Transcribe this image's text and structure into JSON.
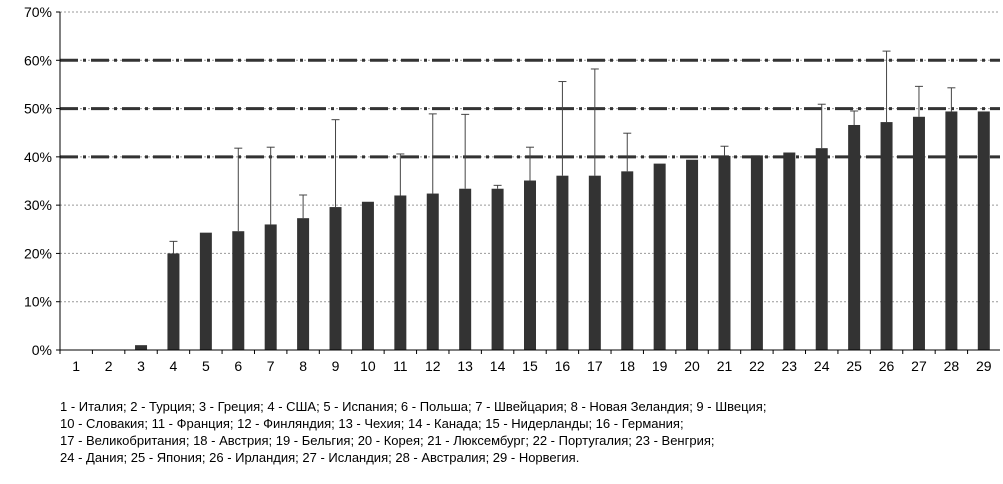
{
  "chart_data": {
    "type": "bar",
    "categories": [
      "1",
      "2",
      "3",
      "4",
      "5",
      "6",
      "7",
      "8",
      "9",
      "10",
      "11",
      "12",
      "13",
      "14",
      "15",
      "16",
      "17",
      "18",
      "19",
      "20",
      "21",
      "22",
      "23",
      "24",
      "25",
      "26",
      "27",
      "28",
      "29"
    ],
    "values": [
      0,
      0,
      1,
      20,
      24.3,
      24.6,
      26,
      27.3,
      29.6,
      30.7,
      32,
      32.4,
      33.4,
      33.4,
      35.1,
      36.1,
      36.1,
      37,
      38.6,
      39.4,
      40.2,
      40.3,
      40.9,
      41.8,
      46.6,
      47.2,
      48.3,
      49.4,
      49.4
    ],
    "error_upper": [
      0,
      0,
      0,
      22.5,
      0,
      41.8,
      42,
      32.1,
      47.7,
      0,
      40.6,
      48.9,
      48.8,
      34.1,
      42,
      55.6,
      58.2,
      44.9,
      0,
      0,
      42.2,
      0,
      0,
      50.9,
      49.5,
      61.9,
      54.6,
      54.3,
      0
    ],
    "ylim": [
      0,
      70
    ],
    "yticks": [
      "0%",
      "10%",
      "20%",
      "30%",
      "40%",
      "50%",
      "60%",
      "70%"
    ],
    "reference_lines": [
      40,
      50,
      60
    ],
    "bar_color": "#333333",
    "title": "",
    "xlabel": "",
    "ylabel": ""
  },
  "legend_lines": [
    "1 - Италия; 2 - Турция; 3 - Греция; 4 - США; 5 - Испания; 6 - Польша; 7 - Швейцария; 8 - Новая Зеландия; 9 - Швеция;",
    "10 - Словакия; 11 - Франция; 12 - Финляндия; 13 - Чехия; 14 - Канада; 15 - Нидерланды; 16 - Германия;",
    "17 - Великобритания; 18 - Австрия; 19 - Бельгия; 20 - Корея; 21 - Люксембург; 22 - Португалия; 23 - Венгрия;",
    "24 - Дания; 25 - Япония; 26 - Ирландия; 27 - Исландия; 28 - Австралия; 29 - Норвегия."
  ]
}
